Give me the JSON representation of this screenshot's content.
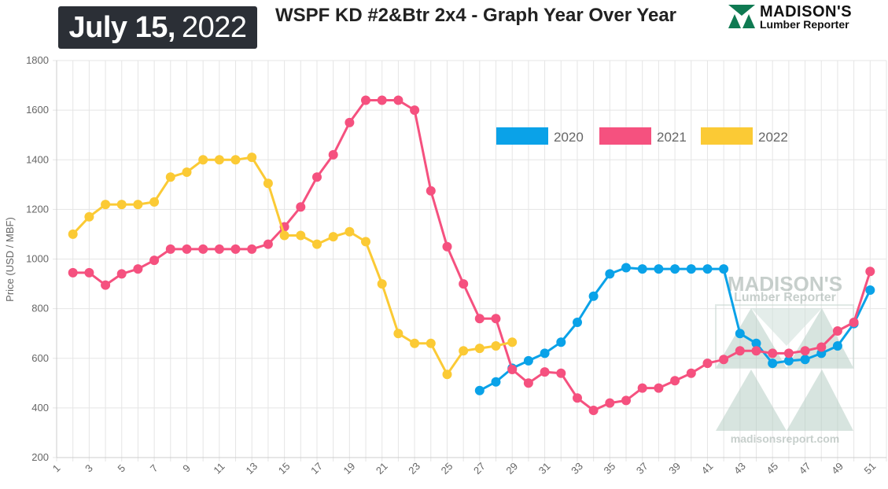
{
  "header": {
    "date_bold": "July 15,",
    "date_year": "2022",
    "title": "WSPF KD #2&Btr 2x4 - Graph Year Over Year",
    "brand_name": "MADISON'S",
    "brand_sub": "Lumber Reporter"
  },
  "watermark": {
    "name": "MADISON'S",
    "sub": "Lumber Reporter",
    "url": "madisonsreport.com"
  },
  "colors": {
    "2020": "#0aa2e8",
    "2021": "#f5517f",
    "2022": "#fbca35",
    "grid": "#e5e5e5",
    "badge": "#2b2f36",
    "brand_green": "#0f7a52"
  },
  "chart_data": {
    "type": "line",
    "title": "WSPF KD #2&Btr 2x4 - Graph Year Over Year",
    "xlabel": "",
    "ylabel": "Price (USD / MBF)",
    "xlim": [
      1,
      52
    ],
    "ylim": [
      200,
      1800
    ],
    "y_ticks": [
      200,
      400,
      600,
      800,
      1000,
      1200,
      1400,
      1600,
      1800
    ],
    "x_tick_labels": [
      "1",
      "3",
      "5",
      "7",
      "9",
      "11",
      "13",
      "15",
      "17",
      "19",
      "21",
      "23",
      "25",
      "27",
      "29",
      "31",
      "33",
      "35",
      "37",
      "39",
      "41",
      "43",
      "45",
      "47",
      "49",
      "51"
    ],
    "grid": true,
    "legend_position": "top-right",
    "series": [
      {
        "name": "2020",
        "color": "#0aa2e8",
        "points": [
          [
            27,
            470
          ],
          [
            28,
            505
          ],
          [
            29,
            560
          ],
          [
            30,
            590
          ],
          [
            31,
            620
          ],
          [
            32,
            665
          ],
          [
            33,
            745
          ],
          [
            34,
            850
          ],
          [
            35,
            940
          ],
          [
            36,
            965
          ],
          [
            37,
            960
          ],
          [
            38,
            960
          ],
          [
            39,
            960
          ],
          [
            40,
            960
          ],
          [
            41,
            960
          ],
          [
            42,
            960
          ],
          [
            43,
            700
          ],
          [
            44,
            660
          ],
          [
            45,
            580
          ],
          [
            46,
            590
          ],
          [
            47,
            595
          ],
          [
            48,
            620
          ],
          [
            49,
            650
          ],
          [
            50,
            740
          ],
          [
            51,
            875
          ]
        ]
      },
      {
        "name": "2021",
        "color": "#f5517f",
        "points": [
          [
            2,
            945
          ],
          [
            3,
            945
          ],
          [
            4,
            895
          ],
          [
            5,
            940
          ],
          [
            6,
            960
          ],
          [
            7,
            995
          ],
          [
            8,
            1040
          ],
          [
            9,
            1040
          ],
          [
            10,
            1040
          ],
          [
            11,
            1040
          ],
          [
            12,
            1040
          ],
          [
            13,
            1040
          ],
          [
            14,
            1060
          ],
          [
            15,
            1130
          ],
          [
            16,
            1210
          ],
          [
            17,
            1330
          ],
          [
            18,
            1420
          ],
          [
            19,
            1550
          ],
          [
            20,
            1640
          ],
          [
            21,
            1640
          ],
          [
            22,
            1640
          ],
          [
            23,
            1600
          ],
          [
            24,
            1275
          ],
          [
            25,
            1050
          ],
          [
            26,
            900
          ],
          [
            27,
            760
          ],
          [
            28,
            760
          ],
          [
            29,
            555
          ],
          [
            30,
            500
          ],
          [
            31,
            545
          ],
          [
            32,
            540
          ],
          [
            33,
            440
          ],
          [
            34,
            390
          ],
          [
            35,
            420
          ],
          [
            36,
            430
          ],
          [
            37,
            480
          ],
          [
            38,
            480
          ],
          [
            39,
            510
          ],
          [
            40,
            540
          ],
          [
            41,
            580
          ],
          [
            42,
            595
          ],
          [
            43,
            630
          ],
          [
            44,
            630
          ],
          [
            45,
            620
          ],
          [
            46,
            620
          ],
          [
            47,
            630
          ],
          [
            48,
            645
          ],
          [
            49,
            710
          ],
          [
            50,
            745
          ],
          [
            51,
            950
          ]
        ]
      },
      {
        "name": "2022",
        "color": "#fbca35",
        "points": [
          [
            2,
            1100
          ],
          [
            3,
            1170
          ],
          [
            4,
            1220
          ],
          [
            5,
            1220
          ],
          [
            6,
            1220
          ],
          [
            7,
            1230
          ],
          [
            8,
            1330
          ],
          [
            9,
            1350
          ],
          [
            10,
            1400
          ],
          [
            11,
            1400
          ],
          [
            12,
            1400
          ],
          [
            13,
            1410
          ],
          [
            14,
            1305
          ],
          [
            15,
            1095
          ],
          [
            16,
            1095
          ],
          [
            17,
            1060
          ],
          [
            18,
            1090
          ],
          [
            19,
            1110
          ],
          [
            20,
            1070
          ],
          [
            21,
            900
          ],
          [
            22,
            700
          ],
          [
            23,
            660
          ],
          [
            24,
            660
          ],
          [
            25,
            535
          ],
          [
            26,
            630
          ],
          [
            27,
            640
          ],
          [
            28,
            650
          ],
          [
            29,
            665
          ]
        ]
      }
    ]
  }
}
